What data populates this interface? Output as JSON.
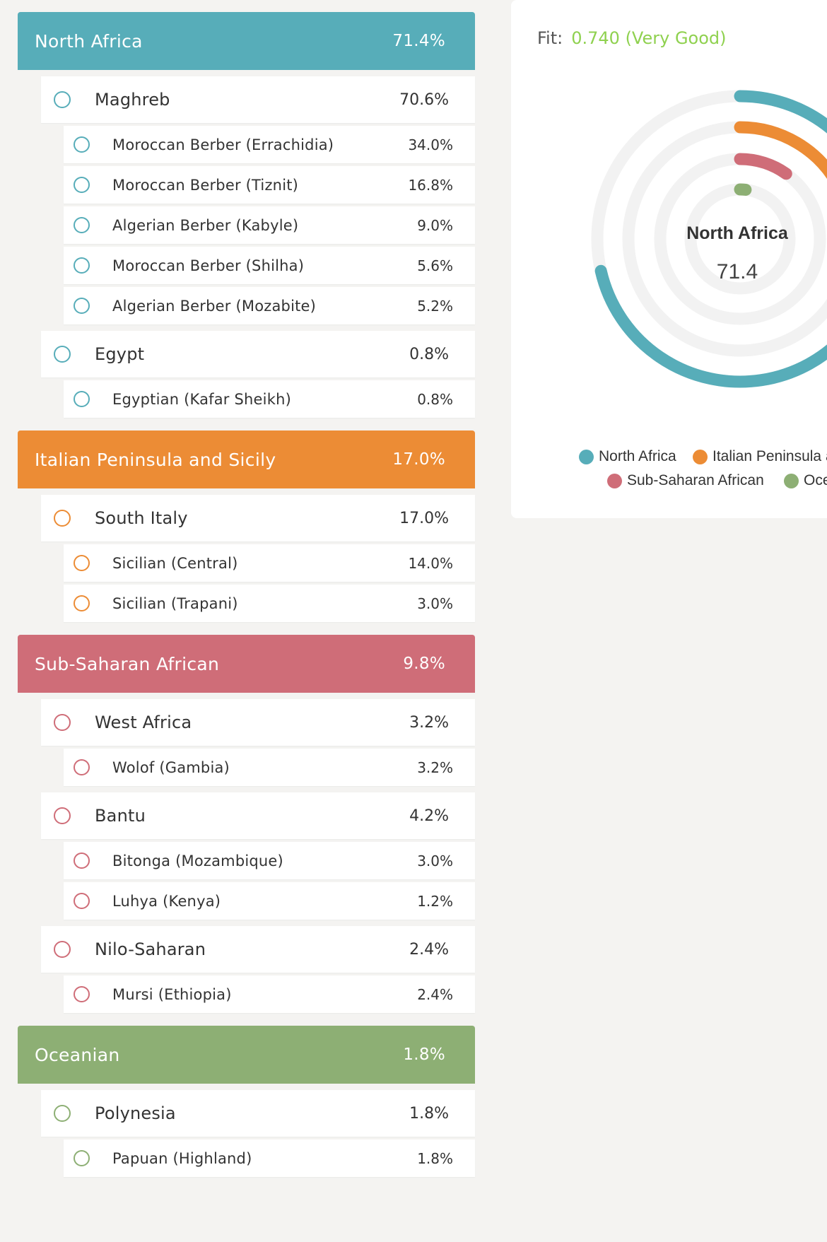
{
  "colors": {
    "north_africa": "#57adb9",
    "italian": "#ec8c35",
    "subsaharan": "#cf6d78",
    "oceanian": "#8daf74",
    "fit": "#8fd14f",
    "ring_bg": "#f2f2f2"
  },
  "groups": [
    {
      "key": "north_africa",
      "name": "North Africa",
      "pct": "71.4%",
      "color": "#57adb9",
      "subgroups": [
        {
          "name": "Maghreb",
          "pct": "70.6%",
          "items": [
            {
              "name": "Moroccan Berber (Errachidia)",
              "pct": "34.0%"
            },
            {
              "name": "Moroccan Berber (Tiznit)",
              "pct": "16.8%"
            },
            {
              "name": "Algerian Berber (Kabyle)",
              "pct": "9.0%"
            },
            {
              "name": "Moroccan Berber (Shilha)",
              "pct": "5.6%"
            },
            {
              "name": "Algerian Berber (Mozabite)",
              "pct": "5.2%"
            }
          ]
        },
        {
          "name": "Egypt",
          "pct": "0.8%",
          "items": [
            {
              "name": "Egyptian (Kafar Sheikh)",
              "pct": "0.8%"
            }
          ]
        }
      ]
    },
    {
      "key": "italian",
      "name": "Italian Peninsula and Sicily",
      "pct": "17.0%",
      "color": "#ec8c35",
      "subgroups": [
        {
          "name": "South Italy",
          "pct": "17.0%",
          "items": [
            {
              "name": "Sicilian (Central)",
              "pct": "14.0%"
            },
            {
              "name": "Sicilian (Trapani)",
              "pct": "3.0%"
            }
          ]
        }
      ]
    },
    {
      "key": "subsaharan",
      "name": "Sub-Saharan African",
      "pct": "9.8%",
      "color": "#cf6d78",
      "subgroups": [
        {
          "name": "West Africa",
          "pct": "3.2%",
          "items": [
            {
              "name": "Wolof (Gambia)",
              "pct": "3.2%"
            }
          ]
        },
        {
          "name": "Bantu",
          "pct": "4.2%",
          "items": [
            {
              "name": "Bitonga (Mozambique)",
              "pct": "3.0%"
            },
            {
              "name": "Luhya (Kenya)",
              "pct": "1.2%"
            }
          ]
        },
        {
          "name": "Nilo-Saharan",
          "pct": "2.4%",
          "items": [
            {
              "name": "Mursi (Ethiopia)",
              "pct": "2.4%"
            }
          ]
        }
      ]
    },
    {
      "key": "oceanian",
      "name": "Oceanian",
      "pct": "1.8%",
      "color": "#8daf74",
      "subgroups": [
        {
          "name": "Polynesia",
          "pct": "1.8%",
          "items": [
            {
              "name": "Papuan (Highland)",
              "pct": "1.8%"
            }
          ]
        }
      ]
    }
  ],
  "card": {
    "fit_label": "Fit:",
    "fit_value": "0.740 (Very Good)",
    "center_title": "North Africa",
    "center_value": "71.4"
  },
  "chart_data": {
    "type": "radial-bar",
    "max": 100,
    "series": [
      {
        "name": "North Africa",
        "value": 71.4,
        "color": "#57adb9"
      },
      {
        "name": "Italian Peninsula and Sicily",
        "value": 17.0,
        "color": "#ec8c35"
      },
      {
        "name": "Sub-Saharan African",
        "value": 9.8,
        "color": "#cf6d78"
      },
      {
        "name": "Oceanian",
        "value": 1.8,
        "color": "#8daf74"
      }
    ],
    "legend": [
      "North Africa",
      "Italian Peninsula and Sicily",
      "Sub-Saharan African",
      "Oceanian"
    ]
  }
}
